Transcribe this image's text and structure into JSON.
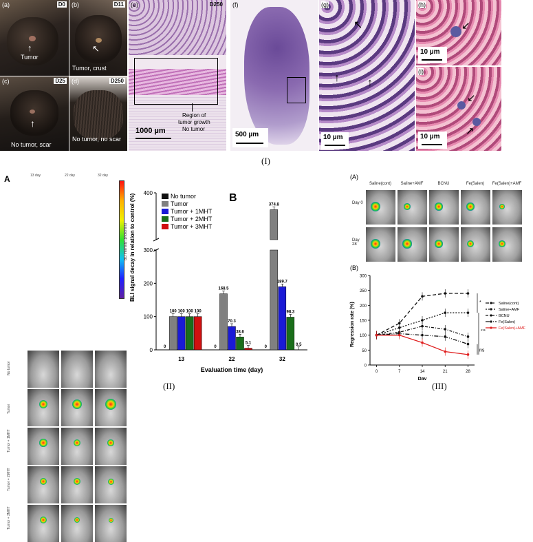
{
  "figure_I": {
    "caption": "(I)",
    "panels": {
      "a": {
        "label": "(a)",
        "day": "D0",
        "note": "Tumor"
      },
      "b": {
        "label": "(b)",
        "day": "D11",
        "note": "Tumor, crust"
      },
      "c": {
        "label": "(c)",
        "day": "D25",
        "note": "No tumor, scar"
      },
      "d": {
        "label": "(d)",
        "day": "D250",
        "note": "No tumor, no scar"
      },
      "e": {
        "label": "(e)",
        "day": "D250",
        "scale": "1000 µm",
        "note1": "Region of",
        "note2": "tumor growth",
        "note3": "No tumor"
      },
      "f": {
        "label": "(f)",
        "scale": "500 µm"
      },
      "g": {
        "label": "(g)",
        "scale": "10 µm"
      },
      "h": {
        "label": "(h)",
        "scale": "10 µm"
      },
      "i": {
        "label": "(i)",
        "scale": "10 µm"
      }
    }
  },
  "figure_II": {
    "caption": "(II)",
    "panel_A": {
      "letter": "A",
      "days": [
        "13 day",
        "22 day",
        "32 day"
      ],
      "rows": [
        "No tumor",
        "Tumor",
        "Tumor + 1MHT",
        "Tumor + 2MHT",
        "Tumor + 3MHT"
      ],
      "colorbar_label": "BLI Intensity (photons/s)"
    },
    "panel_B_letter": "B"
  },
  "figure_III": {
    "caption": "(III)",
    "panel_A_label": "(A)",
    "panel_B_label": "(B)",
    "columns": [
      "Saline(cont)",
      "Saline+AMF",
      "BCNU",
      "Fe(Salen)",
      "Fe(Salen)+AMF"
    ],
    "rows": [
      "Day 0",
      "Day\n28"
    ],
    "sig": {
      "star": "*",
      "triple": "***",
      "ns": "ns"
    }
  },
  "chart_data": [
    {
      "type": "bar",
      "title": "",
      "xlabel": "Evaluation time (day)",
      "ylabel": "BLI signal decay in relation to control (%)",
      "categories": [
        "13",
        "22",
        "32"
      ],
      "ylim": [
        0,
        400
      ],
      "y_break": [
        300,
        330
      ],
      "yticks": [
        "0",
        "100",
        "200",
        "300",
        "400"
      ],
      "legend_position": "top-left",
      "series": [
        {
          "name": "No tumor",
          "color": "#111111",
          "values": [
            0,
            0,
            0
          ],
          "labels": [
            "0",
            "0",
            "0"
          ]
        },
        {
          "name": "Tumor",
          "color": "#808080",
          "values": [
            100,
            168.5,
            374.8
          ],
          "labels": [
            "100",
            "168.5",
            "374.8"
          ]
        },
        {
          "name": "Tumor + 1MHT",
          "color": "#1a1ad6",
          "values": [
            100,
            70.3,
            189.7
          ],
          "labels": [
            "100",
            "70.3",
            "189.7"
          ]
        },
        {
          "name": "Tumor + 2MHT",
          "color": "#1a6e1a",
          "values": [
            100,
            38.6,
            98.3
          ],
          "labels": [
            "100",
            "38.6",
            "98.3"
          ]
        },
        {
          "name": "Tumor + 3MHT",
          "color": "#d01010",
          "values": [
            100,
            5.1,
            0.5
          ],
          "labels": [
            "100",
            "5.1",
            "0.5"
          ]
        }
      ]
    },
    {
      "type": "line",
      "title": "",
      "xlabel": "Day",
      "ylabel": "Regression rate (%)",
      "x": [
        0,
        7,
        14,
        21,
        28
      ],
      "xticks": [
        "0",
        "7",
        "14",
        "21",
        "28"
      ],
      "ylim": [
        0,
        300
      ],
      "yticks": [
        "0",
        "50",
        "100",
        "150",
        "200",
        "250",
        "300"
      ],
      "legend_position": "right",
      "series": [
        {
          "name": "Saline(cont)",
          "color": "#111111",
          "dash": "5,3",
          "values": [
            100,
            140,
            230,
            240,
            240
          ]
        },
        {
          "name": "Saline+AMF",
          "color": "#111111",
          "dash": "2,2",
          "values": [
            100,
            125,
            150,
            175,
            175
          ]
        },
        {
          "name": "BCNU",
          "color": "#111111",
          "dash": "4,2,1,2",
          "values": [
            100,
            110,
            130,
            120,
            95
          ]
        },
        {
          "name": "Fe(Salen)",
          "color": "#111111",
          "dash": "6,2,1,2,1,2",
          "values": [
            100,
            105,
            100,
            95,
            70
          ]
        },
        {
          "name": "Fe(Salen)+AMF",
          "color": "#e02020",
          "dash": "",
          "values": [
            100,
            100,
            75,
            45,
            35
          ]
        }
      ]
    }
  ]
}
